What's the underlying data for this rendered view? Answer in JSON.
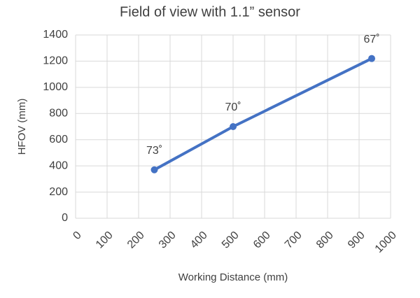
{
  "chart_data": {
    "type": "line",
    "title": "Field of view with 1.1” sensor",
    "x_label": "Working Distance (mm)",
    "y_label": "HFOV (mm)",
    "series": [
      {
        "name": "HFOV",
        "color": "#4472c4",
        "x": [
          250,
          500,
          940
        ],
        "values": [
          370,
          700,
          1220
        ]
      }
    ],
    "annotations": [
      "73˚",
      "70˚",
      "67˚"
    ],
    "xlim": [
      0,
      1000
    ],
    "xticks": [
      0,
      100,
      200,
      300,
      400,
      500,
      600,
      700,
      800,
      900,
      1000
    ],
    "ylim": [
      0,
      1400
    ],
    "yticks": [
      0,
      200,
      400,
      600,
      800,
      1000,
      1200,
      1400
    ],
    "grid": true
  }
}
